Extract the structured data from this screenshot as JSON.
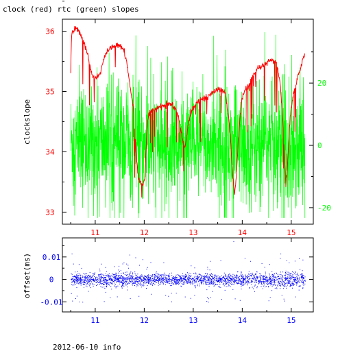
{
  "title": "clock (red) rtc (green) slopes",
  "footer": "2012-06-10 info",
  "colors": {
    "clock": "#ff0000",
    "rtc": "#00ff00",
    "offset": "#0000ff",
    "frame": "#000000",
    "ytick_left": "#ff0000",
    "ytick_right": "#00ff00",
    "xtick_top": "#ff0000",
    "xtick_bottom": "#0000ff"
  },
  "chart_data": [
    {
      "type": "line",
      "title": "clock (red) rtc (green) slopes",
      "xlabel": "",
      "ylabel": "clockslope",
      "xlim": [
        10.33,
        15.45
      ],
      "ylim": [
        32.8,
        36.2
      ],
      "y2lim": [
        -25.3,
        40.5
      ],
      "xticks": [
        11,
        12,
        13,
        14,
        15
      ],
      "xtick_labels": [
        "11",
        "12",
        "13",
        "14",
        "15"
      ],
      "yticks": [
        33,
        34,
        35,
        36
      ],
      "ytick_labels": [
        "33",
        "34",
        "35",
        "36"
      ],
      "y2ticks": [
        -20,
        0,
        20
      ],
      "y2tick_labels": [
        "-20",
        "0",
        "20"
      ],
      "grid": false,
      "legend": "none",
      "series": [
        {
          "name": "clock",
          "axis": "left",
          "x": [
            10.5,
            10.52,
            10.55,
            10.58,
            10.62,
            10.68,
            10.75,
            10.82,
            10.88,
            10.93,
            10.98,
            11.03,
            11.08,
            11.13,
            11.18,
            11.25,
            11.32,
            11.38,
            11.45,
            11.52,
            11.58,
            11.65,
            11.7,
            11.74,
            11.78,
            11.8,
            11.83,
            11.86,
            11.89,
            11.93,
            11.97,
            12.01,
            12.04,
            12.07,
            12.1,
            12.15,
            12.22,
            12.3,
            12.4,
            12.5,
            12.58,
            12.65,
            12.72,
            12.78,
            12.83,
            12.87,
            12.92,
            12.98,
            13.05,
            13.12,
            13.2,
            13.28,
            13.35,
            13.42,
            13.5,
            13.58,
            13.65,
            13.72,
            13.76,
            13.8,
            13.84,
            13.88,
            13.92,
            13.96,
            14.0,
            14.05,
            14.12,
            14.2,
            14.3,
            14.4,
            14.5,
            14.6,
            14.7,
            14.78,
            14.83,
            14.86,
            14.89,
            14.92,
            14.95,
            14.98,
            15.02,
            15.06,
            15.12,
            15.18,
            15.24,
            15.28
          ],
          "y": [
            35.4,
            35.95,
            36.0,
            36.02,
            36.05,
            35.98,
            35.85,
            35.7,
            35.48,
            35.3,
            35.22,
            35.24,
            35.28,
            35.38,
            35.55,
            35.67,
            35.72,
            35.75,
            35.78,
            35.75,
            35.68,
            35.45,
            35.15,
            34.95,
            34.7,
            34.4,
            34.0,
            33.75,
            33.55,
            33.5,
            33.45,
            33.55,
            34.1,
            34.55,
            34.65,
            34.68,
            34.7,
            34.74,
            34.76,
            34.8,
            34.78,
            34.7,
            34.5,
            34.2,
            34.05,
            34.3,
            34.55,
            34.72,
            34.8,
            34.84,
            34.88,
            34.9,
            34.95,
            35.0,
            35.03,
            35.02,
            34.98,
            34.6,
            34.2,
            33.7,
            33.3,
            33.6,
            34.2,
            34.6,
            34.9,
            35.0,
            35.1,
            35.22,
            35.35,
            35.42,
            35.47,
            35.52,
            35.48,
            35.1,
            34.5,
            33.9,
            33.45,
            33.7,
            34.2,
            34.6,
            34.85,
            35.0,
            35.18,
            35.38,
            35.55,
            35.62
          ]
        },
        {
          "name": "rtc",
          "axis": "right",
          "x": [
            10.5,
            11.0,
            11.5,
            12.0,
            12.5,
            13.0,
            13.5,
            14.0,
            14.5,
            15.0,
            15.28
          ],
          "y": [
            1.0,
            0.5,
            1.5,
            -1.0,
            0.0,
            0.5,
            0.0,
            -0.5,
            0.5,
            1.0,
            0.0
          ],
          "spread": [
            11,
            12,
            12,
            11,
            11,
            11,
            11,
            12,
            12,
            13,
            12
          ]
        }
      ]
    },
    {
      "type": "scatter",
      "xlabel": "",
      "ylabel": "offset(ms)",
      "xlim": [
        10.33,
        15.45
      ],
      "ylim": [
        -0.0145,
        0.0185
      ],
      "xticks": [
        11,
        12,
        13,
        14,
        15
      ],
      "xtick_labels": [
        "11",
        "12",
        "13",
        "14",
        "15"
      ],
      "yticks": [
        -0.01,
        0,
        0.01
      ],
      "ytick_labels": [
        "-0.01",
        "0",
        "0.01"
      ],
      "grid": false,
      "legend": "none",
      "series": [
        {
          "name": "offset",
          "x_range": [
            10.5,
            15.28
          ],
          "center": 0.0,
          "spread": [
            0.0016,
            0.0014,
            0.0017,
            0.0013,
            0.0012,
            0.0013,
            0.0012,
            0.0014,
            0.0016,
            0.0019,
            0.0015
          ],
          "spread_x": [
            10.5,
            11.0,
            11.5,
            12.0,
            12.5,
            13.0,
            13.5,
            14.0,
            14.5,
            15.0,
            15.28
          ],
          "outliers": [
            [
              10.52,
              0.0115
            ],
            [
              10.53,
              -0.0095
            ],
            [
              10.55,
              0.007
            ],
            [
              11.58,
              0.0075
            ],
            [
              11.7,
              0.011
            ],
            [
              11.3,
              -0.008
            ],
            [
              12.95,
              0.0062
            ],
            [
              13.82,
              0.017
            ],
            [
              13.85,
              -0.0085
            ],
            [
              14.05,
              0.0095
            ],
            [
              14.78,
              0.0115
            ],
            [
              14.86,
              -0.0095
            ],
            [
              14.9,
              0.0085
            ],
            [
              14.95,
              0.0075
            ],
            [
              12.55,
              -0.006
            ]
          ]
        }
      ]
    }
  ]
}
